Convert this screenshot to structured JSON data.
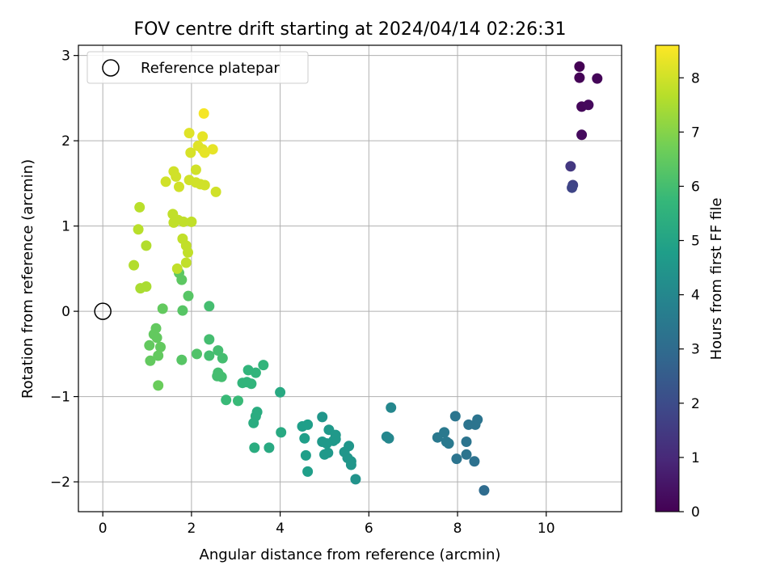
{
  "chart_data": {
    "type": "scatter",
    "title": "FOV centre drift starting at 2024/04/14 02:26:31",
    "xlabel": "Angular distance from reference (arcmin)",
    "ylabel": "Rotation from reference (arcmin)",
    "xlim": [
      -0.55,
      11.7
    ],
    "ylim": [
      -2.35,
      3.12
    ],
    "x_ticks": [
      0,
      2,
      4,
      6,
      8,
      10
    ],
    "y_ticks": [
      -2,
      -1,
      0,
      1,
      2,
      3
    ],
    "x_tick_labels": [
      "0",
      "2",
      "4",
      "6",
      "8",
      "10"
    ],
    "y_tick_labels": [
      "−2",
      "−1",
      "0",
      "1",
      "2",
      "3"
    ],
    "grid": true,
    "legend": {
      "placement": "top-left",
      "entries": [
        "Reference platepar"
      ]
    },
    "reference_point": {
      "x": 0,
      "y": 0
    },
    "colorbar": {
      "label": "Hours from first FF file",
      "min": 0,
      "max": 8.6,
      "colormap": "viridis",
      "ticks": [
        0,
        1,
        2,
        3,
        4,
        5,
        6,
        7,
        8
      ],
      "tick_labels": [
        "0",
        "1",
        "2",
        "3",
        "4",
        "5",
        "6",
        "7",
        "8"
      ]
    },
    "series": [
      {
        "points": [
          {
            "x": 10.75,
            "y": 2.87,
            "h": 0.0
          },
          {
            "x": 10.75,
            "y": 2.74,
            "h": 0.05
          },
          {
            "x": 11.15,
            "y": 2.73,
            "h": 0.1
          },
          {
            "x": 10.8,
            "y": 2.4,
            "h": 0.15
          },
          {
            "x": 10.95,
            "y": 2.42,
            "h": 0.2
          },
          {
            "x": 10.8,
            "y": 2.07,
            "h": 0.25
          },
          {
            "x": 10.55,
            "y": 1.7,
            "h": 1.4
          },
          {
            "x": 10.6,
            "y": 1.48,
            "h": 1.7
          },
          {
            "x": 10.58,
            "y": 1.45,
            "h": 1.8
          },
          {
            "x": 8.6,
            "y": -2.1,
            "h": 3.0
          },
          {
            "x": 7.95,
            "y": -1.23,
            "h": 3.35
          },
          {
            "x": 8.45,
            "y": -1.27,
            "h": 3.3
          },
          {
            "x": 8.25,
            "y": -1.33,
            "h": 3.3
          },
          {
            "x": 8.4,
            "y": -1.33,
            "h": 3.3
          },
          {
            "x": 7.7,
            "y": -1.42,
            "h": 3.5
          },
          {
            "x": 7.55,
            "y": -1.48,
            "h": 3.5
          },
          {
            "x": 7.75,
            "y": -1.53,
            "h": 3.5
          },
          {
            "x": 7.8,
            "y": -1.55,
            "h": 3.5
          },
          {
            "x": 8.2,
            "y": -1.53,
            "h": 3.3
          },
          {
            "x": 8.2,
            "y": -1.68,
            "h": 3.3
          },
          {
            "x": 7.98,
            "y": -1.73,
            "h": 3.3
          },
          {
            "x": 8.38,
            "y": -1.76,
            "h": 3.2
          },
          {
            "x": 6.5,
            "y": -1.13,
            "h": 4.0
          },
          {
            "x": 6.4,
            "y": -1.47,
            "h": 4.0
          },
          {
            "x": 6.45,
            "y": -1.49,
            "h": 4.0
          },
          {
            "x": 4.95,
            "y": -1.24,
            "h": 4.5
          },
          {
            "x": 4.5,
            "y": -1.35,
            "h": 4.8
          },
          {
            "x": 4.62,
            "y": -1.33,
            "h": 4.8
          },
          {
            "x": 5.1,
            "y": -1.39,
            "h": 4.6
          },
          {
            "x": 5.25,
            "y": -1.45,
            "h": 4.6
          },
          {
            "x": 4.55,
            "y": -1.49,
            "h": 4.8
          },
          {
            "x": 4.95,
            "y": -1.53,
            "h": 4.6
          },
          {
            "x": 5.05,
            "y": -1.55,
            "h": 4.6
          },
          {
            "x": 5.2,
            "y": -1.52,
            "h": 4.6
          },
          {
            "x": 5.25,
            "y": -1.5,
            "h": 4.6
          },
          {
            "x": 5.55,
            "y": -1.58,
            "h": 4.5
          },
          {
            "x": 5.45,
            "y": -1.65,
            "h": 4.5
          },
          {
            "x": 5.0,
            "y": -1.68,
            "h": 4.6
          },
          {
            "x": 5.08,
            "y": -1.66,
            "h": 4.6
          },
          {
            "x": 4.58,
            "y": -1.69,
            "h": 4.8
          },
          {
            "x": 5.52,
            "y": -1.72,
            "h": 4.5
          },
          {
            "x": 5.6,
            "y": -1.76,
            "h": 4.5
          },
          {
            "x": 5.6,
            "y": -1.8,
            "h": 4.5
          },
          {
            "x": 4.62,
            "y": -1.88,
            "h": 4.8
          },
          {
            "x": 5.7,
            "y": -1.97,
            "h": 4.4
          },
          {
            "x": 4.0,
            "y": -0.95,
            "h": 5.2
          },
          {
            "x": 4.02,
            "y": -1.42,
            "h": 5.2
          },
          {
            "x": 3.48,
            "y": -1.18,
            "h": 5.3
          },
          {
            "x": 3.45,
            "y": -1.23,
            "h": 5.3
          },
          {
            "x": 3.4,
            "y": -1.31,
            "h": 5.3
          },
          {
            "x": 3.42,
            "y": -1.6,
            "h": 5.3
          },
          {
            "x": 3.75,
            "y": -1.6,
            "h": 5.2
          },
          {
            "x": 3.62,
            "y": -0.63,
            "h": 5.6
          },
          {
            "x": 3.45,
            "y": -0.72,
            "h": 5.6
          },
          {
            "x": 3.28,
            "y": -0.69,
            "h": 5.6
          },
          {
            "x": 3.15,
            "y": -0.84,
            "h": 5.6
          },
          {
            "x": 3.25,
            "y": -0.83,
            "h": 5.6
          },
          {
            "x": 3.35,
            "y": -0.85,
            "h": 5.6
          },
          {
            "x": 3.05,
            "y": -1.05,
            "h": 5.8
          },
          {
            "x": 2.78,
            "y": -1.04,
            "h": 5.8
          },
          {
            "x": 2.4,
            "y": 0.06,
            "h": 6.0
          },
          {
            "x": 2.4,
            "y": -0.33,
            "h": 6.0
          },
          {
            "x": 2.4,
            "y": -0.52,
            "h": 6.0
          },
          {
            "x": 2.6,
            "y": -0.46,
            "h": 6.0
          },
          {
            "x": 2.7,
            "y": -0.55,
            "h": 6.0
          },
          {
            "x": 2.6,
            "y": -0.72,
            "h": 6.0
          },
          {
            "x": 2.58,
            "y": -0.76,
            "h": 6.0
          },
          {
            "x": 2.68,
            "y": -0.77,
            "h": 6.0
          },
          {
            "x": 2.12,
            "y": -0.5,
            "h": 6.2
          },
          {
            "x": 1.78,
            "y": -0.57,
            "h": 6.3
          },
          {
            "x": 1.8,
            "y": 0.01,
            "h": 6.3
          },
          {
            "x": 1.93,
            "y": 0.18,
            "h": 6.3
          },
          {
            "x": 1.78,
            "y": 0.37,
            "h": 6.4
          },
          {
            "x": 1.72,
            "y": 0.45,
            "h": 6.4
          },
          {
            "x": 1.35,
            "y": 0.03,
            "h": 6.5
          },
          {
            "x": 1.2,
            "y": -0.2,
            "h": 6.5
          },
          {
            "x": 1.15,
            "y": -0.27,
            "h": 6.5
          },
          {
            "x": 1.22,
            "y": -0.31,
            "h": 6.5
          },
          {
            "x": 1.05,
            "y": -0.4,
            "h": 6.5
          },
          {
            "x": 1.3,
            "y": -0.42,
            "h": 6.5
          },
          {
            "x": 1.25,
            "y": -0.52,
            "h": 6.5
          },
          {
            "x": 1.07,
            "y": -0.58,
            "h": 6.5
          },
          {
            "x": 1.25,
            "y": -0.87,
            "h": 6.6
          },
          {
            "x": 0.83,
            "y": 1.22,
            "h": 7.7
          },
          {
            "x": 0.8,
            "y": 0.96,
            "h": 7.7
          },
          {
            "x": 0.98,
            "y": 0.77,
            "h": 7.6
          },
          {
            "x": 0.7,
            "y": 0.54,
            "h": 7.6
          },
          {
            "x": 0.85,
            "y": 0.27,
            "h": 7.5
          },
          {
            "x": 0.98,
            "y": 0.29,
            "h": 7.5
          },
          {
            "x": 1.95,
            "y": 2.09,
            "h": 8.2
          },
          {
            "x": 2.28,
            "y": 2.32,
            "h": 8.5
          },
          {
            "x": 2.25,
            "y": 2.05,
            "h": 8.3
          },
          {
            "x": 2.15,
            "y": 1.94,
            "h": 8.2
          },
          {
            "x": 2.25,
            "y": 1.9,
            "h": 8.2
          },
          {
            "x": 2.3,
            "y": 1.86,
            "h": 8.3
          },
          {
            "x": 2.48,
            "y": 1.9,
            "h": 8.3
          },
          {
            "x": 1.98,
            "y": 1.86,
            "h": 8.1
          },
          {
            "x": 2.1,
            "y": 1.66,
            "h": 8.0
          },
          {
            "x": 1.6,
            "y": 1.64,
            "h": 8.0
          },
          {
            "x": 1.65,
            "y": 1.58,
            "h": 8.0
          },
          {
            "x": 1.42,
            "y": 1.52,
            "h": 8.0
          },
          {
            "x": 1.95,
            "y": 1.54,
            "h": 8.0
          },
          {
            "x": 2.1,
            "y": 1.51,
            "h": 8.0
          },
          {
            "x": 2.2,
            "y": 1.49,
            "h": 8.0
          },
          {
            "x": 2.3,
            "y": 1.48,
            "h": 8.0
          },
          {
            "x": 1.72,
            "y": 1.46,
            "h": 8.0
          },
          {
            "x": 2.55,
            "y": 1.4,
            "h": 8.0
          },
          {
            "x": 1.58,
            "y": 1.14,
            "h": 7.8
          },
          {
            "x": 1.7,
            "y": 1.07,
            "h": 7.8
          },
          {
            "x": 1.82,
            "y": 1.05,
            "h": 7.8
          },
          {
            "x": 2.0,
            "y": 1.05,
            "h": 7.8
          },
          {
            "x": 1.6,
            "y": 1.04,
            "h": 7.8
          },
          {
            "x": 1.8,
            "y": 0.85,
            "h": 7.8
          },
          {
            "x": 1.88,
            "y": 0.77,
            "h": 7.8
          },
          {
            "x": 1.92,
            "y": 0.69,
            "h": 7.8
          },
          {
            "x": 1.88,
            "y": 0.57,
            "h": 7.8
          },
          {
            "x": 1.68,
            "y": 0.5,
            "h": 7.8
          }
        ]
      }
    ]
  }
}
